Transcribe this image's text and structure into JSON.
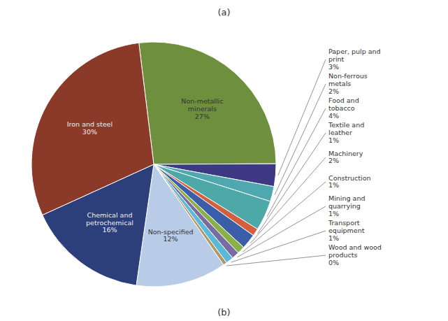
{
  "chart_data": {
    "type": "pie",
    "title": "(a)",
    "subtitle": "(b)",
    "categories": [
      "Non-metallic\nminerals",
      "Paper, pulp and\nprint",
      "Non-ferrous\nmetals",
      "Food and\ntobacco",
      "Textile and\nleather",
      "Machinery",
      "Construction",
      "Mining and\nquarrying",
      "Transport\nequipment",
      "Wood and wood\nproducts",
      "Non-specified",
      "Chemical and\npetrochemical",
      "Iron and steel"
    ],
    "values": [
      27,
      3,
      2,
      4,
      1,
      2,
      1,
      1,
      1,
      0.5,
      12,
      16,
      30
    ],
    "value_labels": [
      "27%",
      "3%",
      "2%",
      "4%",
      "1%",
      "2%",
      "1%",
      "1%",
      "1%",
      "0%",
      "12%",
      "16%",
      "30%"
    ],
    "colors": [
      "#6e8f3d",
      "#3d3982",
      "#4fa8b0",
      "#4da8a8",
      "#d45f3c",
      "#3a5fa8",
      "#8ab048",
      "#7a6ba0",
      "#5ab8d8",
      "#b09860",
      "#b8cce8",
      "#2d3f7a",
      "#8b3a2a"
    ]
  }
}
